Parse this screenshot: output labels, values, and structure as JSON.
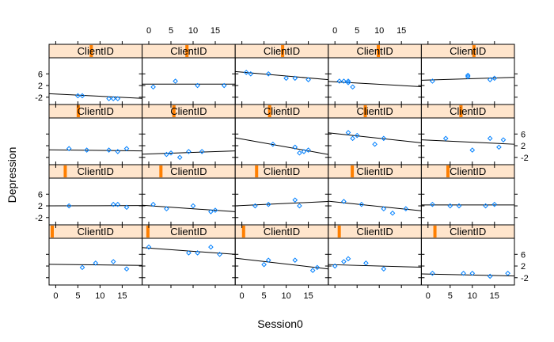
{
  "chart_data": {
    "type": "scatter",
    "layout": "lattice trellis, 5 columns x 4 rows, one panel per client, each with fitted regression line",
    "strip_label": "ClientID",
    "xlabel": "Session0",
    "ylabel": "Depression",
    "xlim": [
      -1.5,
      19.5
    ],
    "ylim": [
      -4.5,
      11.5
    ],
    "x_ticks": [
      0,
      5,
      10,
      15
    ],
    "y_ticks": [
      -2,
      2,
      6
    ],
    "colors": {
      "point": "#0080ff",
      "line": "#000000",
      "strip_bg": "#ffe5cc",
      "strip_marker": "#ff7f00",
      "frame": "#000000"
    },
    "panels": [
      {
        "strip_pos": 0.0,
        "x": [
          6,
          9,
          13,
          16
        ],
        "y": [
          1.5,
          3.0,
          3.5,
          1.0
        ],
        "fit": [
          2.6,
          2.2
        ]
      },
      {
        "strip_pos": 0.03,
        "x": [
          0,
          9,
          11,
          14,
          16
        ],
        "y": [
          8.5,
          6.5,
          6.5,
          8.5,
          6.0
        ],
        "fit": [
          8.3,
          6.0
        ]
      },
      {
        "strip_pos": 0.06,
        "x": [
          5,
          6,
          12,
          16,
          17
        ],
        "y": [
          2.5,
          4.0,
          4.0,
          0.5,
          1.5
        ],
        "fit": [
          4.7,
          1.0
        ]
      },
      {
        "strip_pos": 0.09,
        "x": [
          0,
          2,
          3,
          7,
          11
        ],
        "y": [
          2.0,
          3.5,
          4.5,
          3.0,
          1.0
        ],
        "fit": [
          2.5,
          1.6
        ]
      },
      {
        "strip_pos": 0.12,
        "x": [
          1,
          8,
          10,
          14,
          18
        ],
        "y": [
          -0.5,
          -0.5,
          -0.5,
          -1.5,
          -0.5
        ],
        "fit": [
          -0.7,
          -1.4
        ]
      },
      {
        "strip_pos": 0.15,
        "x": [
          3,
          13,
          14,
          16
        ],
        "y": [
          2.0,
          2.5,
          2.5,
          1.5
        ],
        "fit": [
          2.0,
          2.1
        ]
      },
      {
        "strip_pos": 0.18,
        "x": [
          1,
          4,
          10,
          14,
          15
        ],
        "y": [
          2.5,
          1.0,
          2.0,
          0.0,
          0.5
        ],
        "fit": [
          2.2,
          0.0
        ]
      },
      {
        "strip_pos": 0.21,
        "x": [
          3,
          6,
          12,
          13
        ],
        "y": [
          2.0,
          2.5,
          4.0,
          2.0
        ],
        "fit": [
          2.0,
          3.5
        ]
      },
      {
        "strip_pos": 0.24,
        "x": [
          2,
          6,
          11,
          13,
          16
        ],
        "y": [
          3.5,
          2.5,
          1.0,
          -0.5,
          1.0
        ],
        "fit": [
          3.6,
          0.3
        ]
      },
      {
        "strip_pos": 0.27,
        "x": [
          1,
          5,
          7,
          13,
          15
        ],
        "y": [
          2.5,
          2.0,
          2.0,
          2.0,
          2.5
        ],
        "fit": [
          2.3,
          2.3
        ]
      },
      {
        "strip_pos": 0.3,
        "x": [
          3,
          7,
          12,
          14,
          16
        ],
        "y": [
          1.0,
          0.5,
          0.5,
          0.0,
          1.0
        ],
        "fit": [
          0.6,
          0.2
        ]
      },
      {
        "strip_pos": 0.33,
        "x": [
          4,
          5,
          7,
          9,
          12
        ],
        "y": [
          -1.0,
          -0.5,
          -2.0,
          0.0,
          0.0
        ],
        "fit": [
          -0.9,
          0.2
        ]
      },
      {
        "strip_pos": 0.36,
        "x": [
          7,
          12,
          13,
          14,
          15
        ],
        "y": [
          2.5,
          1.5,
          -0.5,
          0.0,
          0.5
        ],
        "fit": [
          4.7,
          -1.0
        ]
      },
      {
        "strip_pos": 0.39,
        "x": [
          3,
          4,
          5,
          9,
          11
        ],
        "y": [
          6.5,
          4.5,
          5.5,
          2.5,
          4.5
        ],
        "fit": [
          6.4,
          3.0
        ]
      },
      {
        "strip_pos": 0.42,
        "x": [
          4,
          10,
          14,
          16,
          17
        ],
        "y": [
          4.5,
          0.5,
          4.5,
          1.5,
          4.0
        ],
        "fit": [
          4.0,
          2.5
        ]
      },
      {
        "strip_pos": 0.45,
        "x": [
          5,
          6,
          12,
          13,
          14
        ],
        "y": [
          -1.5,
          -1.5,
          -2.5,
          -2.5,
          -2.5
        ],
        "fit": [
          -0.8,
          -2.4
        ]
      },
      {
        "strip_pos": 0.48,
        "x": [
          1,
          6,
          11,
          17
        ],
        "y": [
          1.5,
          3.5,
          2.0,
          2.0
        ],
        "fit": [
          2.5,
          2.5
        ]
      },
      {
        "strip_pos": 0.51,
        "x": [
          1,
          2,
          6,
          10,
          12,
          15
        ],
        "y": [
          6.5,
          6.0,
          6.0,
          4.5,
          4.5,
          4.0
        ],
        "fit": [
          6.8,
          4.0
        ]
      },
      {
        "strip_pos": 0.54,
        "x": [
          1,
          2,
          3,
          3,
          4
        ],
        "y": [
          3.5,
          3.5,
          3.5,
          3.0,
          1.5
        ],
        "fit": [
          3.4,
          1.6
        ]
      },
      {
        "strip_pos": 0.57,
        "x": [
          1,
          9,
          9,
          14,
          15
        ],
        "y": [
          3.5,
          5.0,
          5.5,
          4.0,
          4.5
        ],
        "fit": [
          3.8,
          4.8
        ]
      }
    ]
  }
}
